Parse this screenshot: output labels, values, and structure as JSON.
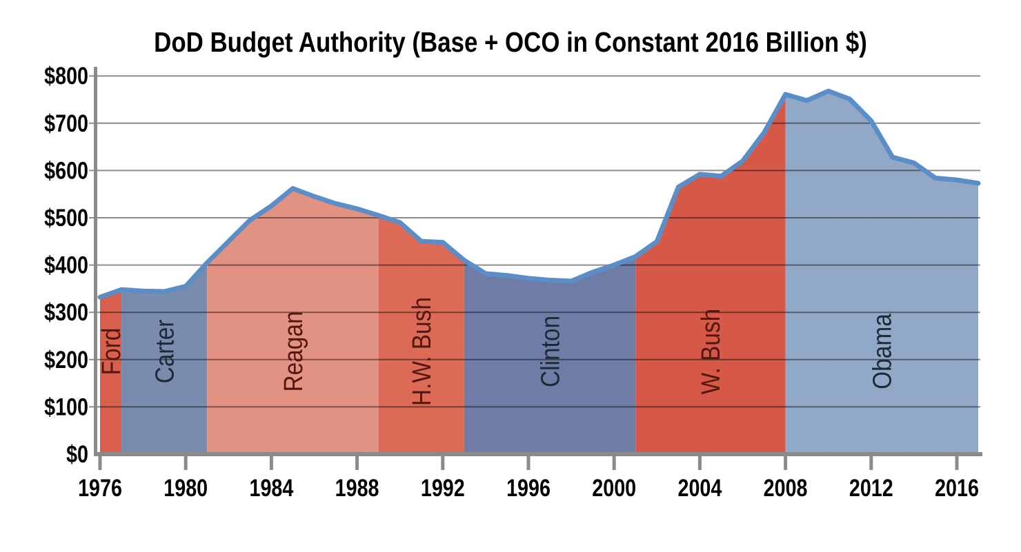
{
  "title": "DoD Budget Authority (Base + OCO in Constant 2016 Billion $)",
  "colors": {
    "line": "#5B8EC6",
    "gridline": "rgba(0,0,0,0.45)",
    "axis": "#8A8A8A",
    "text": "#000000",
    "red_region_label": "#54170E",
    "blue_region_label": "#1E2936",
    "background": "#FFFFFF"
  },
  "chart_data": {
    "type": "area",
    "title": "DoD Budget Authority (Base + OCO in Constant 2016 Billion $)",
    "xlabel": "",
    "ylabel": "",
    "x": [
      1976,
      1977,
      1978,
      1979,
      1980,
      1981,
      1982,
      1983,
      1984,
      1985,
      1986,
      1987,
      1988,
      1989,
      1990,
      1991,
      1992,
      1993,
      1994,
      1995,
      1996,
      1997,
      1998,
      1999,
      2000,
      2001,
      2002,
      2003,
      2004,
      2005,
      2006,
      2007,
      2008,
      2009,
      2010,
      2011,
      2012,
      2013,
      2014,
      2015,
      2016,
      2017
    ],
    "series": [
      {
        "name": "DoD Budget Authority (Base + OCO, constant 2016 $B)",
        "values": [
          332,
          348,
          345,
          344,
          355,
          405,
          450,
          495,
          525,
          562,
          545,
          530,
          519,
          505,
          490,
          450,
          448,
          410,
          382,
          378,
          372,
          368,
          366,
          385,
          400,
          418,
          450,
          565,
          592,
          588,
          620,
          680,
          761,
          748,
          768,
          751,
          705,
          628,
          616,
          584,
          580,
          573
        ]
      }
    ],
    "xlim": [
      1976,
      2017
    ],
    "ylim": [
      0,
      800
    ],
    "x_ticks": [
      1976,
      1980,
      1984,
      1988,
      1992,
      1996,
      2000,
      2004,
      2008,
      2012,
      2016
    ],
    "x_tick_labels": [
      "1976",
      "1980",
      "1984",
      "1988",
      "1992",
      "1996",
      "2000",
      "2004",
      "2008",
      "2012",
      "2016"
    ],
    "y_ticks": [
      0,
      100,
      200,
      300,
      400,
      500,
      600,
      700,
      800
    ],
    "y_tick_labels": [
      "$0",
      "$100",
      "$200",
      "$300",
      "$400",
      "$500",
      "$600",
      "$700",
      "$800"
    ],
    "grid": true,
    "legend": false,
    "line_color": "#5B8EC6",
    "regions": [
      {
        "label": "Ford",
        "start": 1976,
        "end": 1977,
        "fill": "#D95F4E",
        "label_color": "#54170E"
      },
      {
        "label": "Carter",
        "start": 1977,
        "end": 1981,
        "fill": "#7A8CAE",
        "label_color": "#1E2936"
      },
      {
        "label": "Reagan",
        "start": 1981,
        "end": 1989,
        "fill": "#E29282",
        "label_color": "#54170E"
      },
      {
        "label": "H.W. Bush",
        "start": 1989,
        "end": 1993,
        "fill": "#DB6A57",
        "label_color": "#54170E"
      },
      {
        "label": "Clinton",
        "start": 1993,
        "end": 2001,
        "fill": "#6F7DA6",
        "label_color": "#1E2936"
      },
      {
        "label": "W. Bush",
        "start": 2001,
        "end": 2008,
        "fill": "#D65948",
        "label_color": "#54170E"
      },
      {
        "label": "Obama",
        "start": 2008,
        "end": 2017,
        "fill": "#91A9C6",
        "label_color": "#1E2936"
      }
    ]
  }
}
